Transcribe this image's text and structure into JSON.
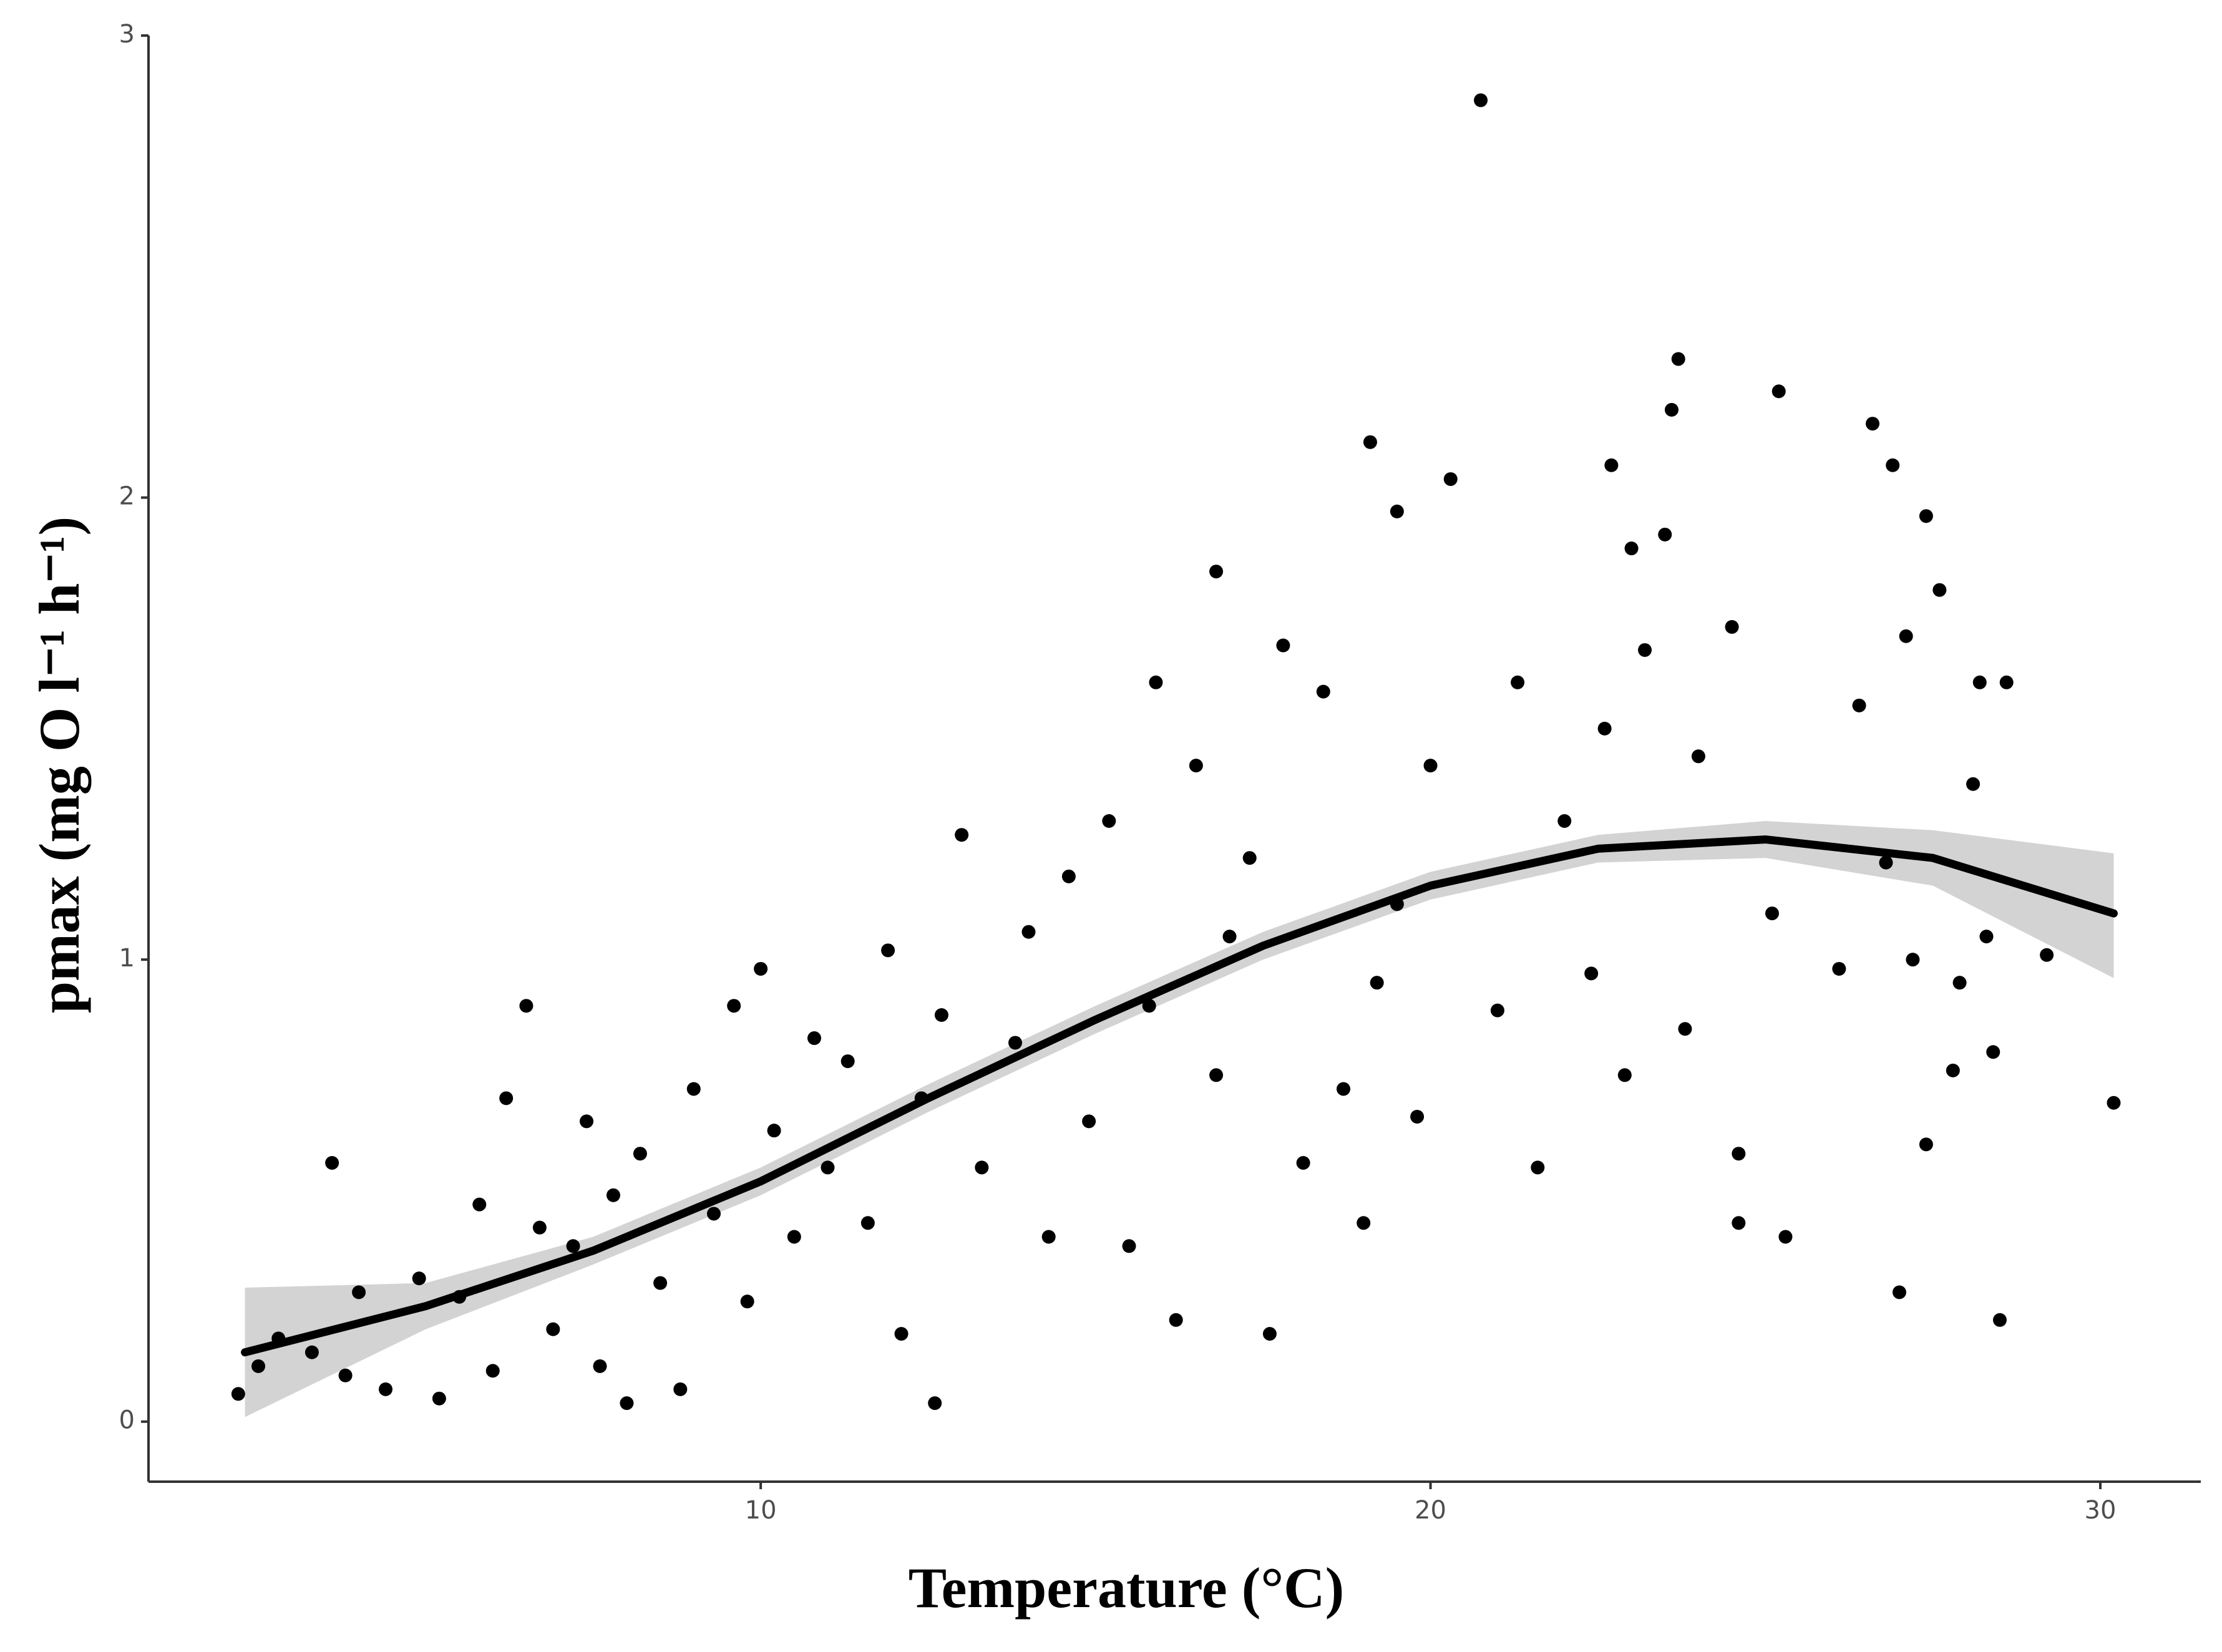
{
  "chart_data": {
    "type": "scatter",
    "x_label": "Temperature (°C)",
    "y_label": "pmax  (mg O l⁻¹ h⁻¹)",
    "xlim": [
      0.86,
      31.5
    ],
    "ylim": [
      -0.13,
      3.0
    ],
    "xticks": [
      10,
      20,
      30
    ],
    "yticks": [
      0,
      1,
      2,
      3
    ],
    "grid": false,
    "color": "#000000",
    "x": [
      2.2,
      2.5,
      2.8,
      3.3,
      3.6,
      3.8,
      4.0,
      4.4,
      4.9,
      5.2,
      5.5,
      5.8,
      6.0,
      6.2,
      6.5,
      6.7,
      6.9,
      7.2,
      7.4,
      7.6,
      7.8,
      8.0,
      8.2,
      8.5,
      8.8,
      9.0,
      9.3,
      9.6,
      9.8,
      10.0,
      10.2,
      10.5,
      10.8,
      11.0,
      11.3,
      11.6,
      11.9,
      12.1,
      12.4,
      12.7,
      13.0,
      13.3,
      12.6,
      13.8,
      14.0,
      14.3,
      14.6,
      14.9,
      15.2,
      15.5,
      15.8,
      15.9,
      16.2,
      16.5,
      16.8,
      17.0,
      17.3,
      17.6,
      16.8,
      18.1,
      18.4,
      18.7,
      17.8,
      19.2,
      19.5,
      19.8,
      20.0,
      19.0,
      19.1,
      19.5,
      21.0,
      21.3,
      21.6,
      20.3,
      22.0,
      20.75,
      22.4,
      22.6,
      22.9,
      23.2,
      23.5,
      23.8,
      24.0,
      22.7,
      24.6,
      23.0,
      25.1,
      23.6,
      23.7,
      24.5,
      26.1,
      26.4,
      24.6,
      26.8,
      25.2,
      25.3,
      27.4,
      27.6,
      27.9,
      28.1,
      28.3,
      26.6,
      28.5,
      26.9,
      27.0,
      27.1,
      27.4,
      27.8,
      28.2,
      27.2,
      28.4,
      28.6,
      29.2,
      30.2
    ],
    "y": [
      0.06,
      0.12,
      0.18,
      0.15,
      0.56,
      0.1,
      0.28,
      0.07,
      0.31,
      0.05,
      0.27,
      0.47,
      0.11,
      0.7,
      0.9,
      0.42,
      0.2,
      0.38,
      0.65,
      0.12,
      0.49,
      0.04,
      0.58,
      0.3,
      0.07,
      0.72,
      0.45,
      0.9,
      0.26,
      0.98,
      0.63,
      0.4,
      0.83,
      0.55,
      0.78,
      0.43,
      1.02,
      0.19,
      0.7,
      0.88,
      1.27,
      0.55,
      0.04,
      0.82,
      1.06,
      0.4,
      1.18,
      0.65,
      1.3,
      0.38,
      0.9,
      1.6,
      0.22,
      1.42,
      0.75,
      1.05,
      1.22,
      0.19,
      1.84,
      0.56,
      1.58,
      0.72,
      1.68,
      0.95,
      1.12,
      0.66,
      1.42,
      0.43,
      2.12,
      1.97,
      0.89,
      1.6,
      0.55,
      2.04,
      1.3,
      2.86,
      0.97,
      1.5,
      0.75,
      1.67,
      1.92,
      0.85,
      1.44,
      2.07,
      0.58,
      1.89,
      1.1,
      2.19,
      2.3,
      1.72,
      0.98,
      1.55,
      0.43,
      1.21,
      2.23,
      0.4,
      0.6,
      1.8,
      0.95,
      1.38,
      1.05,
      2.16,
      0.22,
      2.07,
      0.28,
      1.7,
      1.96,
      0.76,
      1.6,
      1.0,
      0.8,
      1.6,
      1.01,
      0.69
    ],
    "smooth": {
      "color": "#000000",
      "band_color": "#d3d3d3",
      "x": [
        2.3,
        5,
        7.5,
        10,
        12.5,
        15,
        17.5,
        20,
        22.5,
        25,
        27.5,
        30.2
      ],
      "y": [
        0.15,
        0.25,
        0.37,
        0.52,
        0.7,
        0.87,
        1.03,
        1.16,
        1.24,
        1.26,
        1.22,
        1.1
      ],
      "lower": [
        0.01,
        0.2,
        0.34,
        0.49,
        0.67,
        0.84,
        1.0,
        1.13,
        1.21,
        1.22,
        1.16,
        0.96
      ],
      "upper": [
        0.29,
        0.3,
        0.4,
        0.55,
        0.73,
        0.9,
        1.06,
        1.19,
        1.27,
        1.3,
        1.28,
        1.23
      ]
    }
  }
}
